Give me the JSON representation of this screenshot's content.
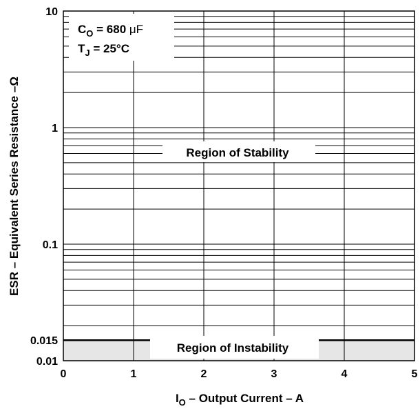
{
  "chart_data": {
    "type": "area",
    "x_axis": {
      "label_main": "I",
      "label_sub": "O",
      "label_rest": " – Output Current – A",
      "range": [
        0,
        5
      ],
      "ticks": [
        0,
        1,
        2,
        3,
        4,
        5
      ],
      "tick_labels": [
        "0",
        "1",
        "2",
        "3",
        "4",
        "5"
      ],
      "scale": "linear"
    },
    "y_axis": {
      "label": "ESR – Equivalent Series Resistance –Ω",
      "range": [
        0.01,
        10
      ],
      "ticks": [
        0.01,
        0.015,
        0.1,
        1,
        10
      ],
      "tick_labels": [
        "0.01",
        "0.015",
        "0.1",
        "1",
        "10"
      ],
      "scale": "log"
    },
    "grid": true,
    "stability_boundary": {
      "x": [
        0,
        5
      ],
      "y": [
        0.015,
        0.015
      ]
    },
    "regions": [
      {
        "name": "Region of Stability",
        "y_range": [
          0.015,
          10
        ],
        "fill": "#ffffff"
      },
      {
        "name": "Region of Instability",
        "y_range": [
          0.01,
          0.015
        ],
        "fill": "#e6e6e6"
      }
    ],
    "annotations": {
      "co_main": "C",
      "co_sub": "O",
      "co_value": " = 680 ",
      "co_unit": "μF",
      "tj_main": "T",
      "tj_sub": "J",
      "tj_value": " = 25°C"
    }
  }
}
